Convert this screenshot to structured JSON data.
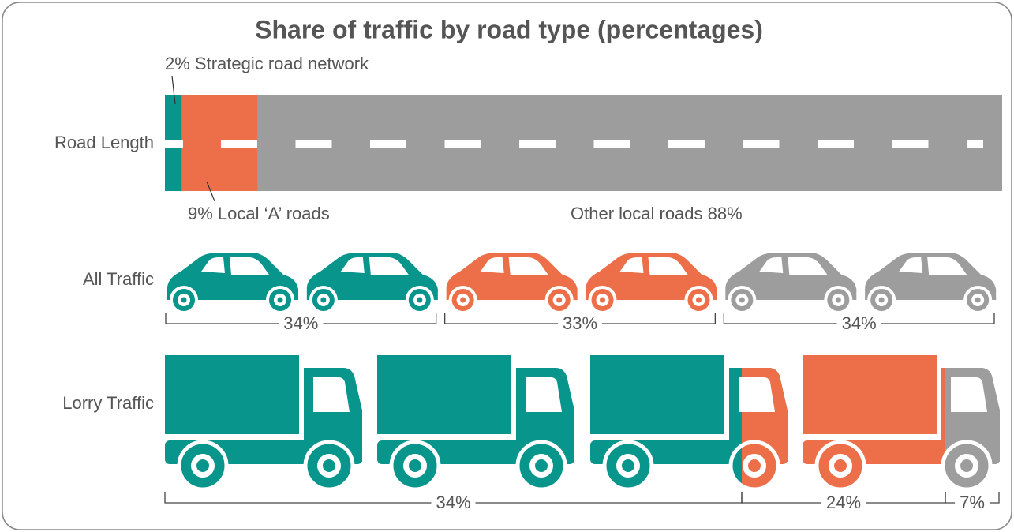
{
  "chart_data": {
    "type": "pictogram",
    "title": "Share of traffic by road type (percentages)",
    "colors": [
      "#08958c",
      "#ec6f4a",
      "#9d9d9d"
    ],
    "rows": [
      {
        "label": "Road Length",
        "values": [
          2,
          9,
          88
        ],
        "value_labels": [
          "2% Strategic road network",
          "9% Local ‘A’ roads",
          "Other local roads 88%"
        ]
      },
      {
        "label": "All Traffic",
        "values": [
          34,
          33,
          34
        ],
        "value_labels": [
          "34%",
          "33%",
          "34%"
        ]
      },
      {
        "label": "Lorry Traffic",
        "values": [
          34,
          24,
          7
        ],
        "value_labels": [
          "34%",
          "24%",
          "7%"
        ]
      }
    ]
  }
}
